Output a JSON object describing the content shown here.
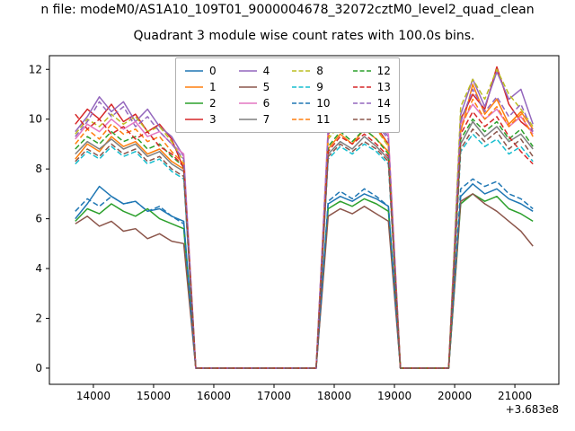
{
  "figure": {
    "suptitle": "n file: modeM0/AS1A10_109T01_9000004678_32072cztM0_level2_quad_clean",
    "title": "Quadrant 3 module wise count rates with 100.0s bins.",
    "x_offset": "+3.683e8",
    "background": "#ffffff"
  },
  "chart_data": {
    "type": "line",
    "title": "Quadrant 3 module wise count rates with 100.0s bins.",
    "xlabel": "",
    "ylabel": "",
    "x_offset_label": "+3.683e8",
    "bin_seconds": 100.0,
    "xlim": [
      13270,
      21730
    ],
    "ylim": [
      -0.65,
      12.55
    ],
    "xticks": [
      14000,
      15000,
      16000,
      17000,
      18000,
      19000,
      20000,
      21000
    ],
    "yticks": [
      0,
      2,
      4,
      6,
      8,
      10,
      12
    ],
    "grid": false,
    "legend_position": "upper center",
    "x_step": 200,
    "gap_value": 0,
    "segments": [
      {
        "x0": 13700,
        "n": 10
      },
      {
        "x0": 17900,
        "n": 6
      },
      {
        "x0": 20100,
        "n": 7
      }
    ],
    "series": [
      {
        "name": "0",
        "color": "#1f77b4",
        "dash": false,
        "seg_values": [
          [
            6.0,
            6.6,
            7.3,
            6.9,
            6.6,
            6.7,
            6.3,
            6.4,
            6.1,
            5.9
          ],
          [
            6.6,
            6.9,
            6.7,
            7.0,
            6.8,
            6.5
          ],
          [
            6.9,
            7.4,
            7.0,
            7.2,
            6.8,
            6.6,
            6.3
          ]
        ]
      },
      {
        "name": "1",
        "color": "#ff7f0e",
        "dash": false,
        "seg_values": [
          [
            8.4,
            9.0,
            8.7,
            9.3,
            8.9,
            9.1,
            8.6,
            8.8,
            8.3,
            8.0
          ],
          [
            8.8,
            9.4,
            9.0,
            9.6,
            9.2,
            8.7
          ],
          [
            9.5,
            11.4,
            10.2,
            10.8,
            9.8,
            10.3,
            9.6
          ]
        ]
      },
      {
        "name": "2",
        "color": "#2ca02c",
        "dash": false,
        "seg_values": [
          [
            5.9,
            6.4,
            6.2,
            6.6,
            6.3,
            6.1,
            6.4,
            6.0,
            5.8,
            5.6
          ],
          [
            6.4,
            6.7,
            6.5,
            6.8,
            6.6,
            6.3
          ],
          [
            6.6,
            7.0,
            6.7,
            6.9,
            6.4,
            6.2,
            5.9
          ]
        ]
      },
      {
        "name": "3",
        "color": "#d62728",
        "dash": false,
        "seg_values": [
          [
            9.8,
            10.4,
            10.0,
            10.6,
            9.9,
            10.2,
            9.5,
            9.8,
            9.2,
            8.0
          ],
          [
            9.4,
            10.0,
            9.6,
            10.1,
            9.7,
            9.0
          ],
          [
            10.0,
            11.0,
            10.4,
            12.1,
            10.6,
            9.9,
            9.5
          ]
        ]
      },
      {
        "name": "4",
        "color": "#9467bd",
        "dash": false,
        "seg_values": [
          [
            9.5,
            10.1,
            10.9,
            10.3,
            10.7,
            9.9,
            10.4,
            9.7,
            9.3,
            8.5
          ],
          [
            9.6,
            10.2,
            9.8,
            10.4,
            9.9,
            9.3
          ],
          [
            10.2,
            11.6,
            10.5,
            11.9,
            10.8,
            11.2,
            9.8
          ]
        ]
      },
      {
        "name": "5",
        "color": "#8c564b",
        "dash": false,
        "seg_values": [
          [
            5.8,
            6.1,
            5.7,
            5.9,
            5.5,
            5.6,
            5.2,
            5.4,
            5.1,
            5.0
          ],
          [
            6.1,
            6.4,
            6.2,
            6.5,
            6.2,
            5.9
          ],
          [
            6.7,
            7.0,
            6.6,
            6.3,
            5.9,
            5.5,
            4.9
          ]
        ]
      },
      {
        "name": "6",
        "color": "#e377c2",
        "dash": false,
        "seg_values": [
          [
            9.2,
            9.8,
            9.5,
            10.0,
            9.6,
            9.9,
            9.3,
            9.5,
            9.0,
            8.6
          ],
          [
            9.7,
            10.4,
            10.0,
            10.5,
            10.1,
            9.4
          ],
          [
            9.8,
            10.6,
            10.0,
            10.4,
            9.7,
            10.1,
            9.4
          ]
        ]
      },
      {
        "name": "7",
        "color": "#7f7f7f",
        "dash": false,
        "seg_values": [
          [
            8.6,
            9.1,
            8.8,
            9.2,
            8.8,
            9.0,
            8.5,
            8.7,
            8.2,
            7.9
          ],
          [
            8.6,
            9.1,
            8.8,
            9.3,
            8.9,
            8.4
          ],
          [
            9.0,
            9.9,
            9.3,
            9.7,
            9.1,
            9.4,
            8.8
          ]
        ]
      },
      {
        "name": "8",
        "color": "#bcbd22",
        "dash": true,
        "seg_values": [
          [
            9.4,
            10.0,
            9.7,
            10.2,
            9.8,
            10.1,
            9.5,
            9.7,
            9.1,
            8.3
          ],
          [
            9.2,
            9.8,
            9.5,
            10.0,
            9.6,
            8.9
          ],
          [
            10.5,
            11.6,
            10.8,
            12.0,
            11.0,
            10.4,
            9.7
          ]
        ]
      },
      {
        "name": "9",
        "color": "#17becf",
        "dash": true,
        "seg_values": [
          [
            8.2,
            8.7,
            8.4,
            8.9,
            8.5,
            8.7,
            8.2,
            8.4,
            7.9,
            7.6
          ],
          [
            8.4,
            8.9,
            8.6,
            9.0,
            8.7,
            8.2
          ],
          [
            8.7,
            9.4,
            8.9,
            9.2,
            8.6,
            8.9,
            8.3
          ]
        ]
      },
      {
        "name": "10",
        "color": "#1f77b4",
        "dash": true,
        "seg_values": [
          [
            6.3,
            6.8,
            6.5,
            6.9,
            6.6,
            6.7,
            6.3,
            6.5,
            6.1,
            5.8
          ],
          [
            6.7,
            7.1,
            6.8,
            7.2,
            6.9,
            6.5
          ],
          [
            7.2,
            7.6,
            7.3,
            7.5,
            7.0,
            6.8,
            6.4
          ]
        ]
      },
      {
        "name": "11",
        "color": "#ff7f0e",
        "dash": true,
        "seg_values": [
          [
            9.0,
            9.6,
            9.2,
            9.8,
            9.4,
            9.6,
            9.1,
            9.3,
            8.7,
            8.2
          ],
          [
            9.3,
            9.9,
            9.5,
            10.0,
            9.6,
            9.0
          ],
          [
            9.6,
            10.8,
            10.0,
            10.5,
            9.7,
            10.2,
            9.3
          ]
        ]
      },
      {
        "name": "12",
        "color": "#2ca02c",
        "dash": true,
        "seg_values": [
          [
            8.8,
            9.3,
            9.0,
            9.5,
            9.1,
            9.3,
            8.8,
            9.0,
            8.5,
            8.1
          ],
          [
            8.9,
            9.5,
            9.1,
            9.6,
            9.2,
            8.6
          ],
          [
            9.2,
            10.0,
            9.5,
            9.9,
            9.2,
            9.6,
            8.9
          ]
        ]
      },
      {
        "name": "13",
        "color": "#d62728",
        "dash": true,
        "seg_values": [
          [
            10.2,
            9.6,
            10.0,
            9.4,
            9.7,
            9.2,
            9.5,
            8.9,
            8.6,
            8.1
          ],
          [
            8.7,
            9.3,
            9.0,
            9.4,
            9.0,
            8.5
          ],
          [
            9.4,
            10.3,
            9.7,
            10.1,
            9.3,
            8.7,
            8.2
          ]
        ]
      },
      {
        "name": "14",
        "color": "#9467bd",
        "dash": true,
        "seg_values": [
          [
            9.3,
            9.9,
            10.7,
            10.1,
            10.5,
            9.7,
            10.1,
            9.5,
            9.0,
            8.4
          ],
          [
            9.5,
            10.1,
            9.7,
            10.2,
            9.8,
            9.2
          ],
          [
            9.9,
            11.2,
            10.3,
            10.9,
            10.1,
            10.6,
            9.5
          ]
        ]
      },
      {
        "name": "15",
        "color": "#8c564b",
        "dash": true,
        "seg_values": [
          [
            8.3,
            8.8,
            8.5,
            9.0,
            8.6,
            8.8,
            8.3,
            8.5,
            8.0,
            7.7
          ],
          [
            8.5,
            9.0,
            8.7,
            9.1,
            8.8,
            8.3
          ],
          [
            8.8,
            9.6,
            9.1,
            9.5,
            8.8,
            9.2,
            8.5
          ]
        ]
      }
    ]
  }
}
